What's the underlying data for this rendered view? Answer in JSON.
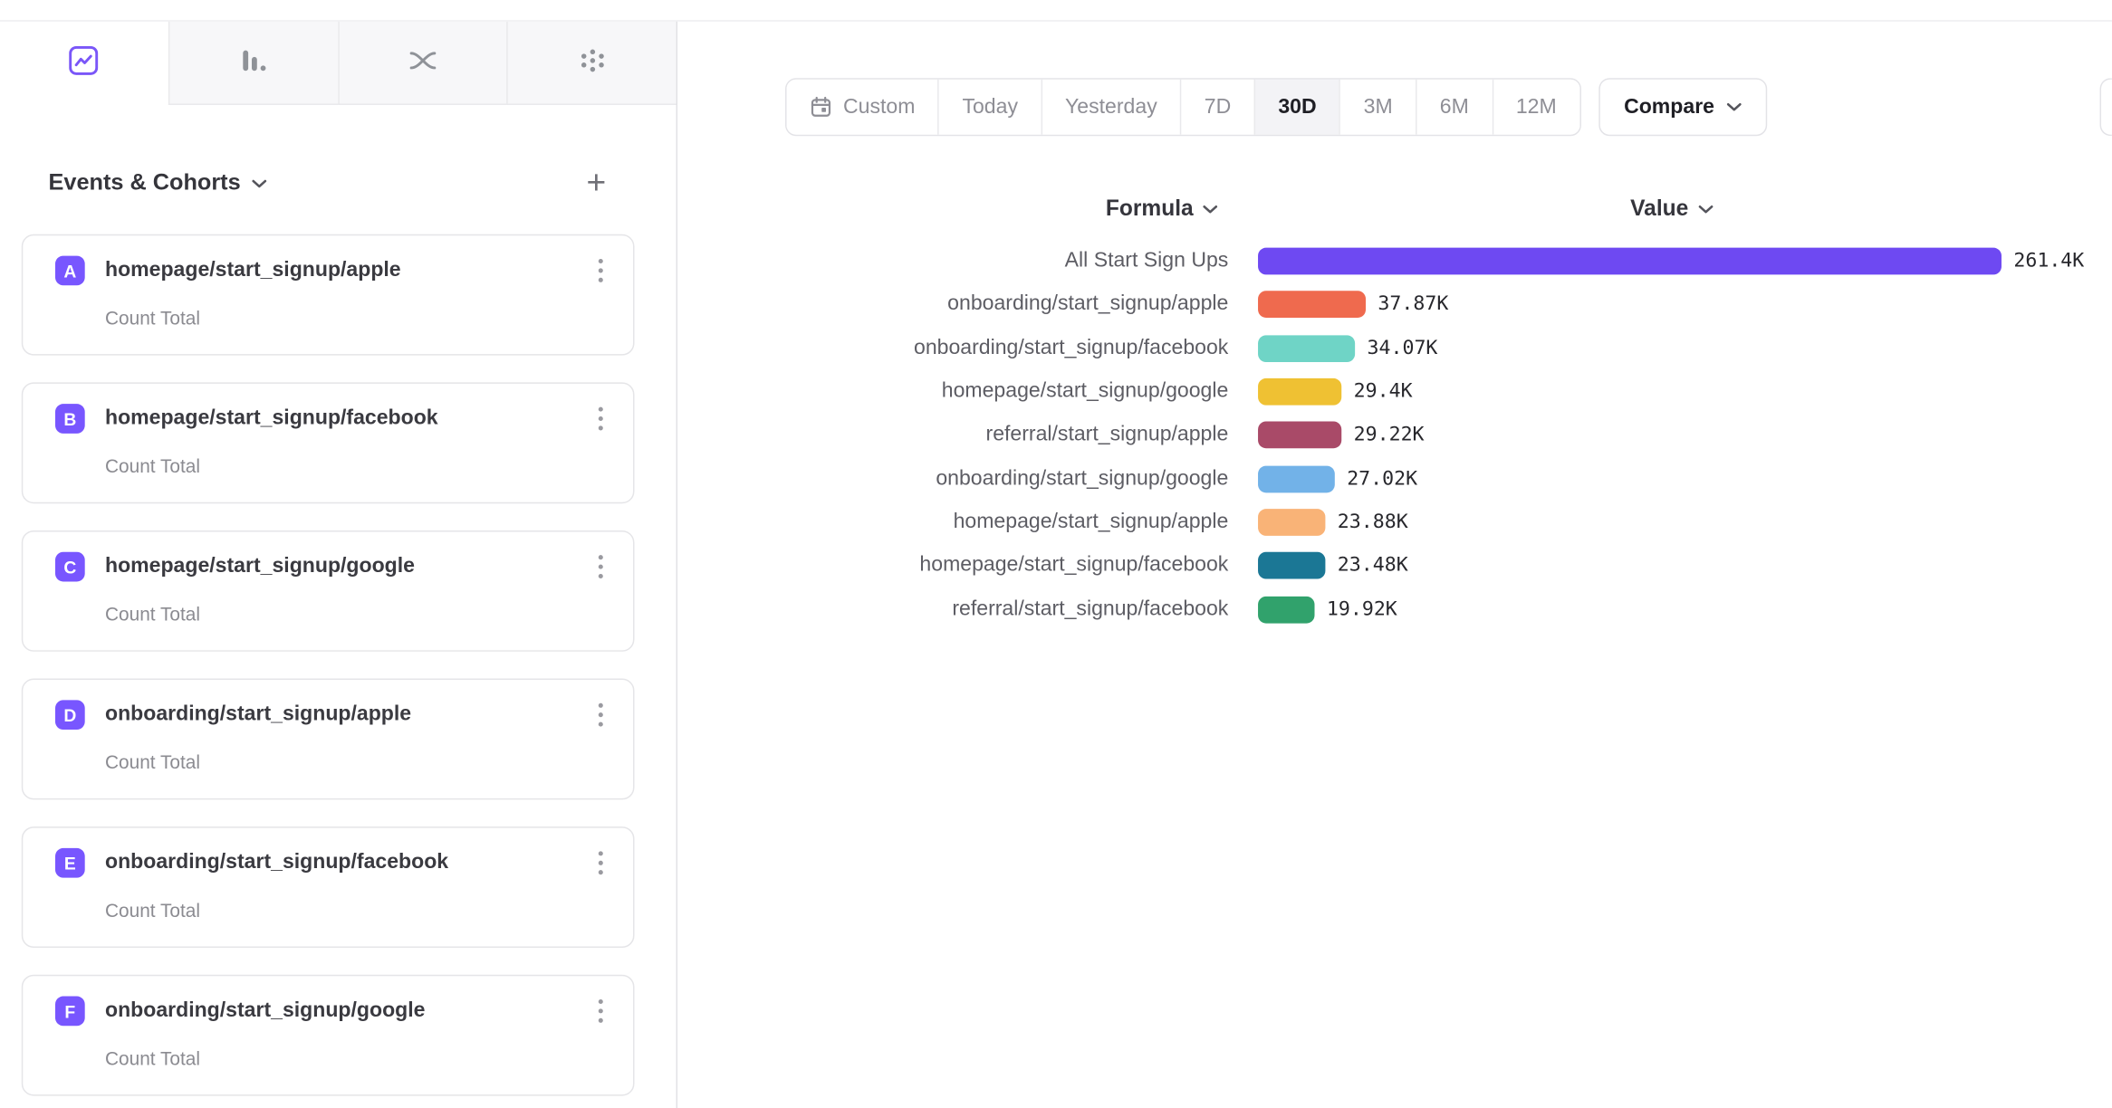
{
  "accent_color": "#7856ff",
  "sidebar": {
    "tabs": [
      {
        "icon": "line-chart-icon",
        "selected": true
      },
      {
        "icon": "bar-chart-icon",
        "selected": false
      },
      {
        "icon": "flow-chart-icon",
        "selected": false
      },
      {
        "icon": "dot-grid-icon",
        "selected": false
      }
    ],
    "section_title": "Events & Cohorts",
    "add_button_label": "+",
    "events": [
      {
        "letter": "A",
        "name": "homepage/start_signup/apple",
        "metric": "Count Total"
      },
      {
        "letter": "B",
        "name": "homepage/start_signup/facebook",
        "metric": "Count Total"
      },
      {
        "letter": "C",
        "name": "homepage/start_signup/google",
        "metric": "Count Total"
      },
      {
        "letter": "D",
        "name": "onboarding/start_signup/apple",
        "metric": "Count Total"
      },
      {
        "letter": "E",
        "name": "onboarding/start_signup/facebook",
        "metric": "Count Total"
      },
      {
        "letter": "F",
        "name": "onboarding/start_signup/google",
        "metric": "Count Total"
      }
    ]
  },
  "toolbar": {
    "ranges": [
      {
        "label": "Custom",
        "icon": "calendar"
      },
      {
        "label": "Today"
      },
      {
        "label": "Yesterday"
      },
      {
        "label": "7D"
      },
      {
        "label": "30D"
      },
      {
        "label": "3M"
      },
      {
        "label": "6M"
      },
      {
        "label": "12M"
      }
    ],
    "selected_range": "30D",
    "compare_label": "Compare"
  },
  "chart_data": {
    "type": "bar",
    "orientation": "horizontal",
    "formula_header": "Formula",
    "value_header": "Value",
    "rows": [
      {
        "label": "All Start Sign Ups",
        "value": 261400,
        "display": "261.4K",
        "color": "#6e49f2"
      },
      {
        "label": "onboarding/start_signup/apple",
        "value": 37870,
        "display": "37.87K",
        "color": "#ef6a4e"
      },
      {
        "label": "onboarding/start_signup/facebook",
        "value": 34070,
        "display": "34.07K",
        "color": "#6fd4c6"
      },
      {
        "label": "homepage/start_signup/google",
        "value": 29400,
        "display": "29.4K",
        "color": "#efc133"
      },
      {
        "label": "referral/start_signup/apple",
        "value": 29220,
        "display": "29.22K",
        "color": "#a94a68"
      },
      {
        "label": "onboarding/start_signup/google",
        "value": 27020,
        "display": "27.02K",
        "color": "#72b2e8"
      },
      {
        "label": "homepage/start_signup/apple",
        "value": 23880,
        "display": "23.88K",
        "color": "#f9b377"
      },
      {
        "label": "homepage/start_signup/facebook",
        "value": 23480,
        "display": "23.48K",
        "color": "#1b7795"
      },
      {
        "label": "referral/start_signup/facebook",
        "value": 19920,
        "display": "19.92K",
        "color": "#31a26c"
      }
    ]
  }
}
